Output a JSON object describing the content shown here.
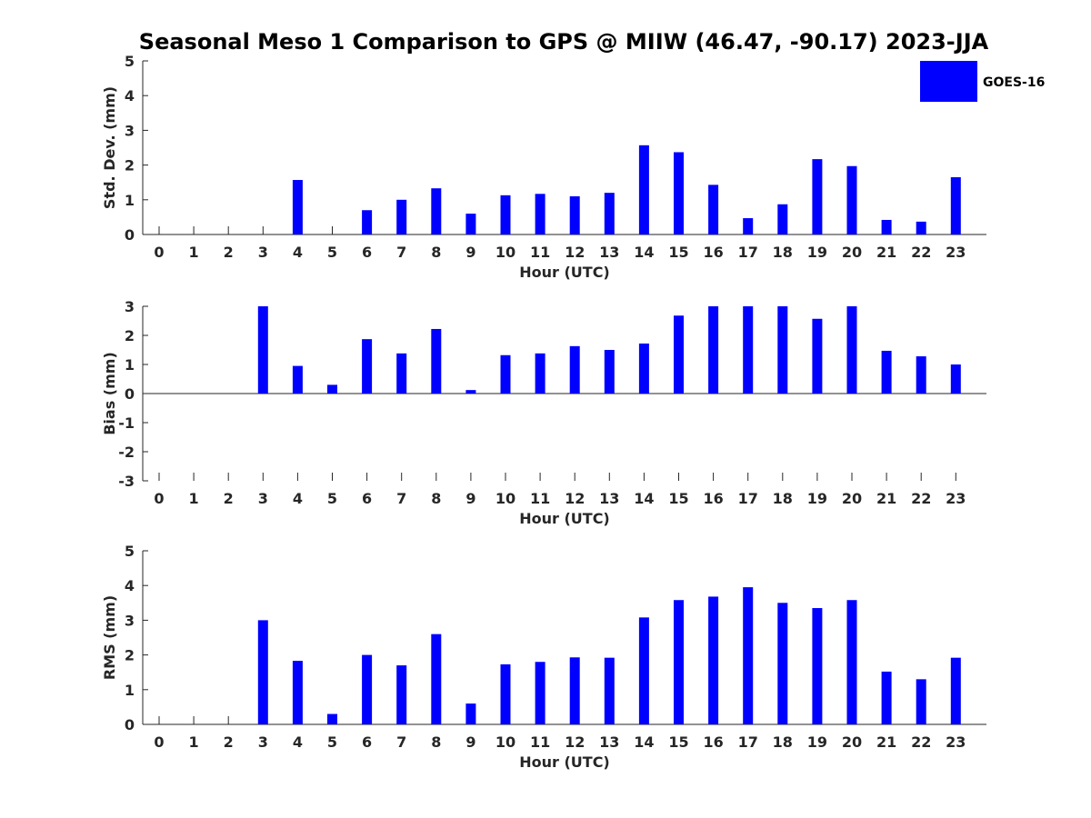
{
  "figure": {
    "title": "Seasonal Meso 1 Comparison to GPS @ MIIW (46.47, -90.17) 2023-JJA"
  },
  "legend": {
    "label": "GOES-16",
    "color": "#0000ff"
  },
  "chart_data": [
    {
      "type": "bar",
      "xlabel": "Hour (UTC)",
      "ylabel": "Std. Dev. (mm)",
      "ylim": [
        0,
        5
      ],
      "yticks": [
        0,
        1,
        2,
        3,
        4,
        5
      ],
      "categories": [
        "0",
        "1",
        "2",
        "3",
        "4",
        "5",
        "6",
        "7",
        "8",
        "9",
        "10",
        "11",
        "12",
        "13",
        "14",
        "15",
        "16",
        "17",
        "18",
        "19",
        "20",
        "21",
        "22",
        "23"
      ],
      "series": [
        {
          "name": "GOES-16",
          "color": "#0000ff",
          "values": [
            null,
            null,
            null,
            null,
            1.57,
            null,
            0.7,
            1.0,
            1.33,
            0.6,
            1.13,
            1.17,
            1.1,
            1.2,
            2.57,
            2.37,
            1.43,
            0.47,
            0.87,
            2.17,
            1.97,
            0.42,
            0.37,
            1.65
          ]
        }
      ]
    },
    {
      "type": "bar",
      "xlabel": "Hour (UTC)",
      "ylabel": "Bias (mm)",
      "ylim": [
        -3,
        3
      ],
      "yticks": [
        -3,
        -2,
        -1,
        0,
        1,
        2,
        3
      ],
      "categories": [
        "0",
        "1",
        "2",
        "3",
        "4",
        "5",
        "6",
        "7",
        "8",
        "9",
        "10",
        "11",
        "12",
        "13",
        "14",
        "15",
        "16",
        "17",
        "18",
        "19",
        "20",
        "21",
        "22",
        "23"
      ],
      "series": [
        {
          "name": "GOES-16",
          "color": "#0000ff",
          "values": [
            null,
            null,
            null,
            3.0,
            0.95,
            0.3,
            1.87,
            1.38,
            2.22,
            0.12,
            1.32,
            1.38,
            1.63,
            1.5,
            1.72,
            2.68,
            3.0,
            3.0,
            3.0,
            2.57,
            3.0,
            1.47,
            1.28,
            1.0
          ]
        }
      ]
    },
    {
      "type": "bar",
      "xlabel": "Hour (UTC)",
      "ylabel": "RMS (mm)",
      "ylim": [
        0,
        5
      ],
      "yticks": [
        0,
        1,
        2,
        3,
        4,
        5
      ],
      "categories": [
        "0",
        "1",
        "2",
        "3",
        "4",
        "5",
        "6",
        "7",
        "8",
        "9",
        "10",
        "11",
        "12",
        "13",
        "14",
        "15",
        "16",
        "17",
        "18",
        "19",
        "20",
        "21",
        "22",
        "23"
      ],
      "series": [
        {
          "name": "GOES-16",
          "color": "#0000ff",
          "values": [
            null,
            null,
            null,
            3.0,
            1.83,
            0.3,
            2.0,
            1.7,
            2.6,
            0.6,
            1.73,
            1.8,
            1.93,
            1.92,
            3.08,
            3.58,
            3.68,
            3.95,
            3.5,
            3.35,
            3.58,
            1.52,
            1.3,
            1.92
          ]
        }
      ]
    }
  ]
}
